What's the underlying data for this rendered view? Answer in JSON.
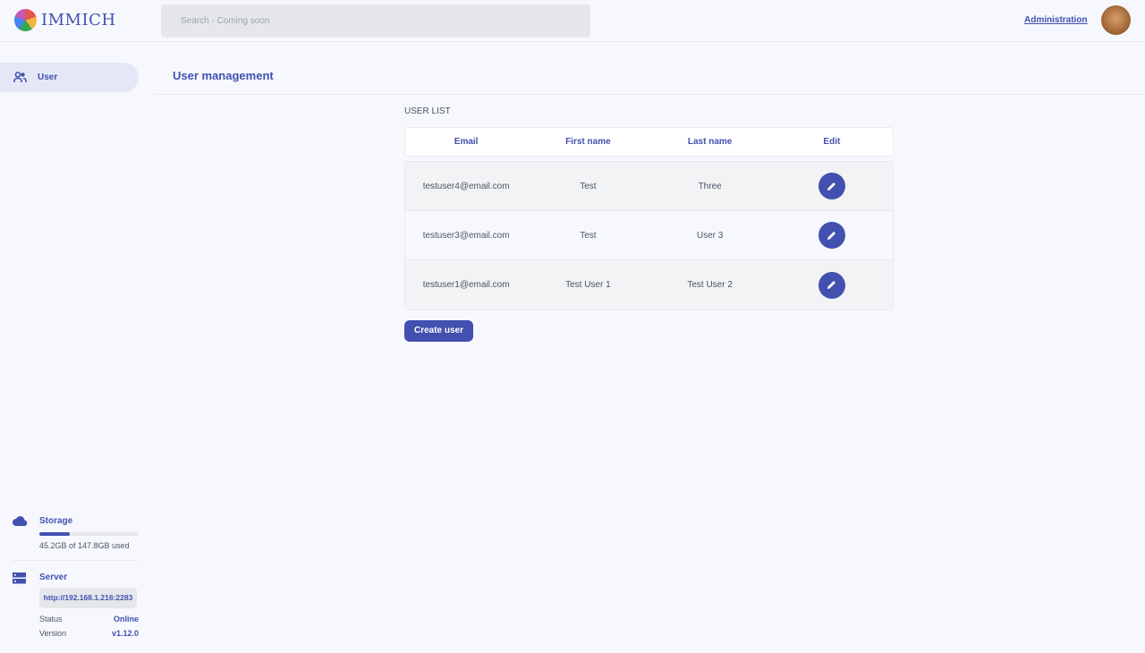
{
  "header": {
    "app_name": "IMMICH",
    "search_placeholder": "Search - Coming soon",
    "admin_link": "Administration"
  },
  "sidebar": {
    "items": [
      {
        "label": "User",
        "icon": "users-icon"
      }
    ],
    "storage": {
      "title": "Storage",
      "usage_text": "45.2GB of 147.8GB used",
      "used_fraction": 0.306
    },
    "server": {
      "title": "Server",
      "url": "http://192.168.1.216:2283",
      "status_label": "Status",
      "status_value": "Online",
      "version_label": "Version",
      "version_value": "v1.12.0"
    }
  },
  "main": {
    "title": "User management",
    "list_label": "USER LIST",
    "columns": [
      "Email",
      "First name",
      "Last name",
      "Edit"
    ],
    "rows": [
      {
        "email": "testuser4@email.com",
        "first": "Test",
        "last": "Three"
      },
      {
        "email": "testuser3@email.com",
        "first": "Test",
        "last": "User 3"
      },
      {
        "email": "testuser1@email.com",
        "first": "Test User 1",
        "last": "Test User 2"
      }
    ],
    "create_button": "Create user"
  },
  "colors": {
    "accent": "#4250af",
    "background": "#f6f8fe"
  }
}
